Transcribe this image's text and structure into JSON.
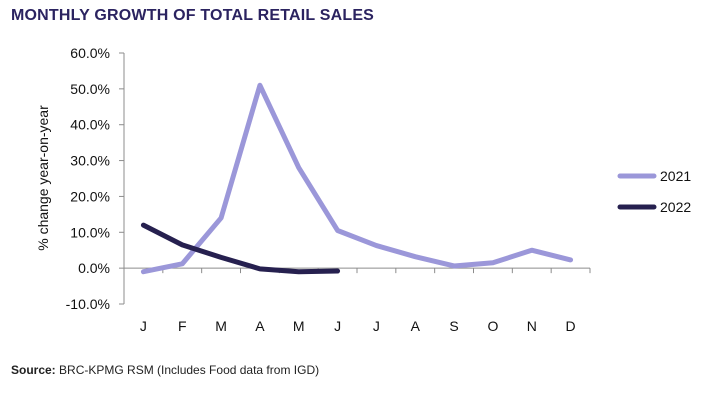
{
  "title": "MONTHLY GROWTH OF TOTAL RETAIL SALES",
  "source_label": "Source:",
  "source_text": "BRC-KPMG RSM (Includes Food data from IGD)",
  "chart_data": {
    "type": "line",
    "title": "MONTHLY GROWTH OF TOTAL RETAIL SALES",
    "xlabel": "",
    "ylabel": "% change year-on-year",
    "categories": [
      "J",
      "F",
      "M",
      "A",
      "M",
      "J",
      "J",
      "A",
      "S",
      "O",
      "N",
      "D"
    ],
    "ylim": [
      -10,
      60
    ],
    "yticks": [
      -10,
      0,
      10,
      20,
      30,
      40,
      50,
      60
    ],
    "ytick_labels": [
      "-10.0%",
      "0.0%",
      "10.0%",
      "20.0%",
      "30.0%",
      "40.0%",
      "50.0%",
      "60.0%"
    ],
    "grid": false,
    "legend_position": "right",
    "series": [
      {
        "name": "2021",
        "color": "#9b97d9",
        "values": [
          -1.0,
          1.2,
          14.0,
          51.0,
          28.0,
          10.5,
          6.3,
          3.2,
          0.6,
          1.5,
          5.0,
          2.3
        ]
      },
      {
        "name": "2022",
        "color": "#26204f",
        "values": [
          12.0,
          6.5,
          3.0,
          -0.2,
          -1.0,
          -0.8,
          null,
          null,
          null,
          null,
          null,
          null
        ]
      }
    ]
  }
}
